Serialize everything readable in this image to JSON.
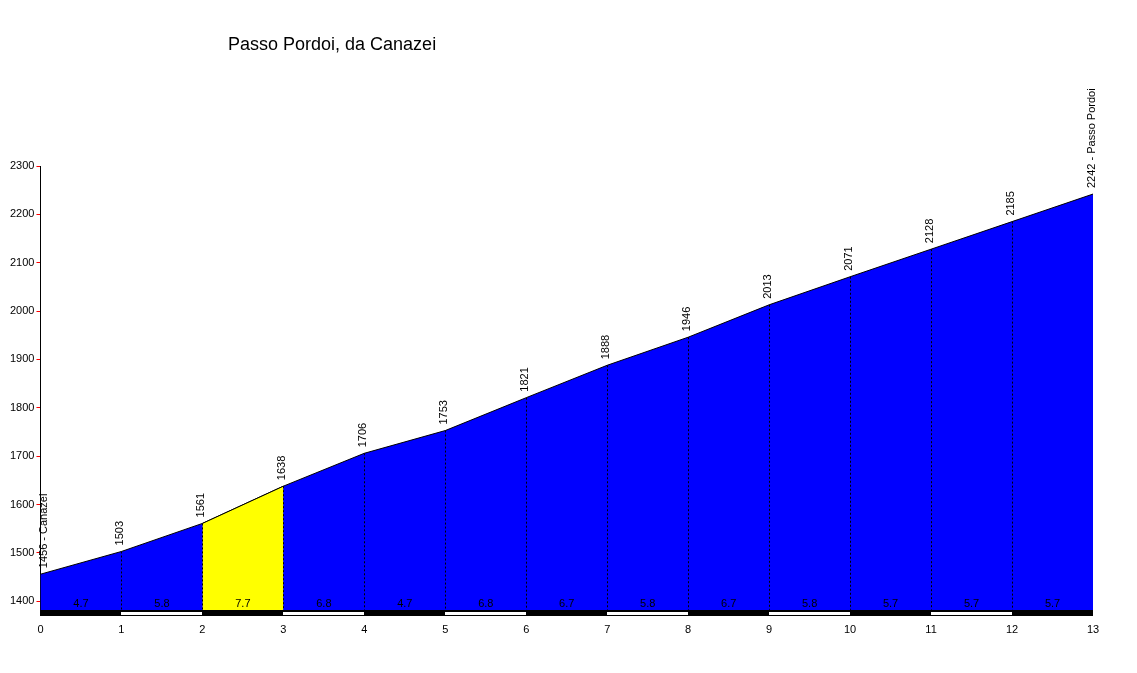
{
  "chart_data": {
    "type": "area",
    "title": "Passo Pordoi, da Canazei",
    "x": [
      0,
      1,
      2,
      3,
      4,
      5,
      6,
      7,
      8,
      9,
      10,
      11,
      12,
      13
    ],
    "series": [
      {
        "color": "#0000ff",
        "values": [
          1456,
          1503,
          1561,
          1638,
          1706,
          1753,
          1821,
          1888,
          1946,
          2013,
          2071,
          2128,
          2185,
          2242
        ],
        "value_labels": [
          "1456 - Canazei",
          "1503",
          "1561",
          "1638",
          "1706",
          "1753",
          "1821",
          "1888",
          "1946",
          "2013",
          "2071",
          "2128",
          "2185",
          "2242 - Passo Pordoi"
        ]
      },
      {
        "color": "#ffff00",
        "x": [
          2,
          3
        ],
        "values": [
          1561,
          1638
        ]
      }
    ],
    "annotations": [
      "4.7",
      "5.8",
      "7.7",
      "6.8",
      "4.7",
      "6.8",
      "6.7",
      "5.8",
      "6.7",
      "5.8",
      "5.7",
      "5.7",
      "5.7"
    ],
    "xlim": [
      0,
      13
    ],
    "xticks": [
      0,
      1,
      2,
      3,
      4,
      5,
      6,
      7,
      8,
      9,
      10,
      11,
      12,
      13
    ],
    "ylim": [
      1370,
      2300
    ],
    "yticks": [
      1400,
      1500,
      1600,
      1700,
      1800,
      1900,
      2000,
      2100,
      2200,
      2300
    ],
    "grid": "x",
    "legend": false
  }
}
